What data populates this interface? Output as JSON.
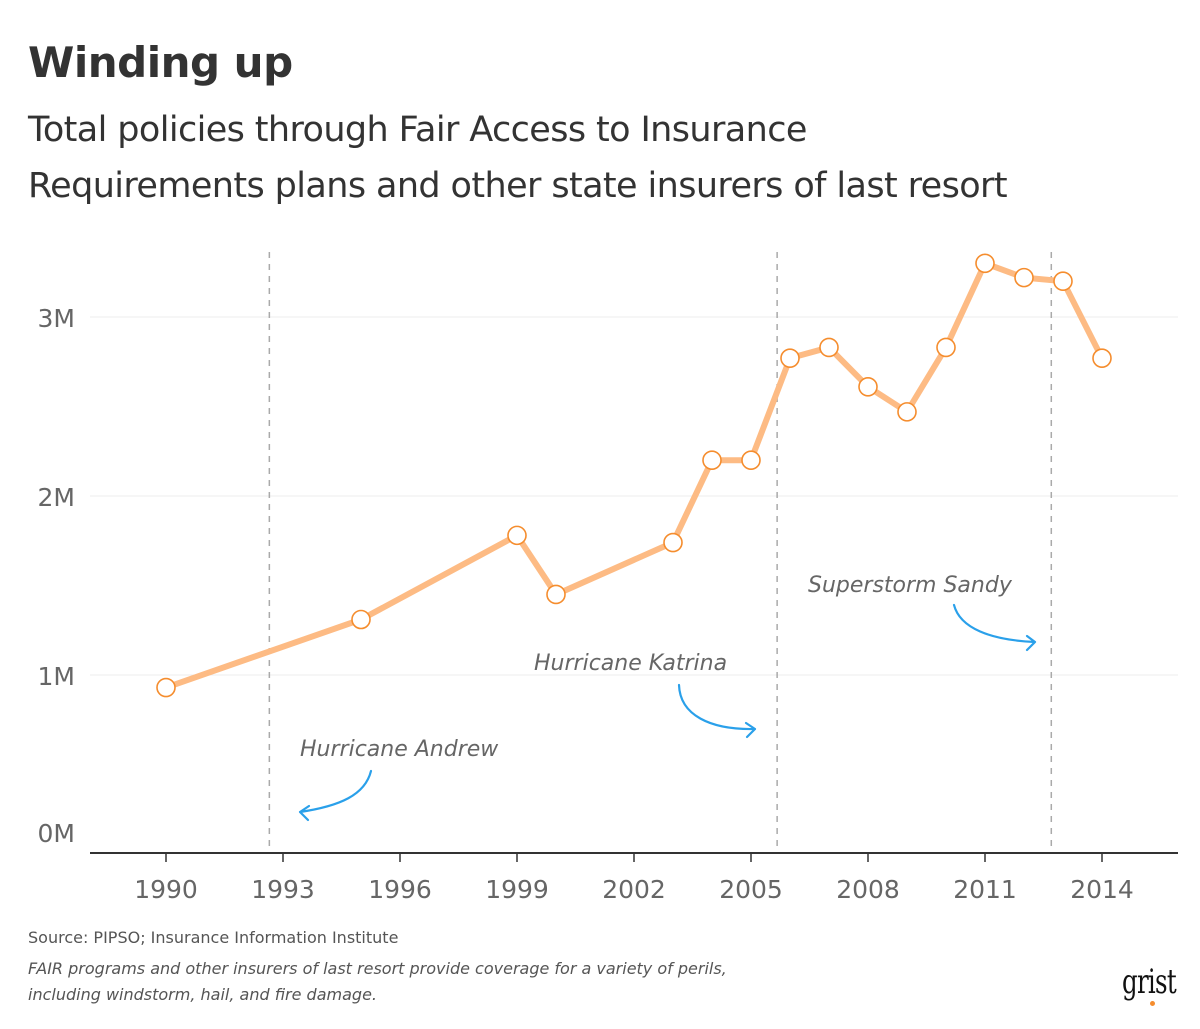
{
  "header": {
    "title": "Winding up",
    "subtitle_lines": [
      "Total policies through Fair Access to Insurance",
      "Requirements plans and other state insurers of last resort"
    ]
  },
  "chart_data": {
    "type": "line",
    "title": "Winding up",
    "subtitle": "Total policies through Fair Access to Insurance Requirements plans and other state insurers of last resort",
    "xlabel": "",
    "ylabel": "",
    "xlim": [
      1988,
      2016
    ],
    "ylim": [
      0,
      3.4
    ],
    "x_ticks": [
      1990,
      1993,
      1996,
      1999,
      2002,
      2005,
      2008,
      2011,
      2014
    ],
    "y_ticks": [
      0,
      1,
      2,
      3
    ],
    "y_tick_labels": [
      "0M",
      "1M",
      "2M",
      "3M"
    ],
    "grid": "horizontal",
    "series": [
      {
        "name": "Total policies (millions)",
        "color": "#fdbb84",
        "marker_color": "#f58d2e",
        "x": [
          1990,
          1995,
          1999,
          2000,
          2003,
          2004,
          2005,
          2006,
          2007,
          2008,
          2009,
          2010,
          2011,
          2012,
          2013,
          2014
        ],
        "values": [
          0.93,
          1.31,
          1.78,
          1.45,
          1.74,
          2.2,
          2.2,
          2.77,
          2.83,
          2.61,
          2.47,
          2.83,
          3.3,
          3.22,
          3.2,
          2.77
        ]
      }
    ],
    "event_lines": [
      {
        "label": "Hurricane Andrew",
        "x": 1992.65
      },
      {
        "label": "Hurricane Katrina",
        "x": 2005.67
      },
      {
        "label": "Superstorm Sandy",
        "x": 2012.7
      }
    ],
    "annotation_color": "#2aa0ea"
  },
  "footer": {
    "source": "Source: PIPSO; Insurance Information Institute",
    "note_lines": [
      "FAIR programs and other insurers of last resort provide coverage for a variety of perils,",
      "including windstorm, hail, and fire damage."
    ],
    "logo": "grist"
  }
}
